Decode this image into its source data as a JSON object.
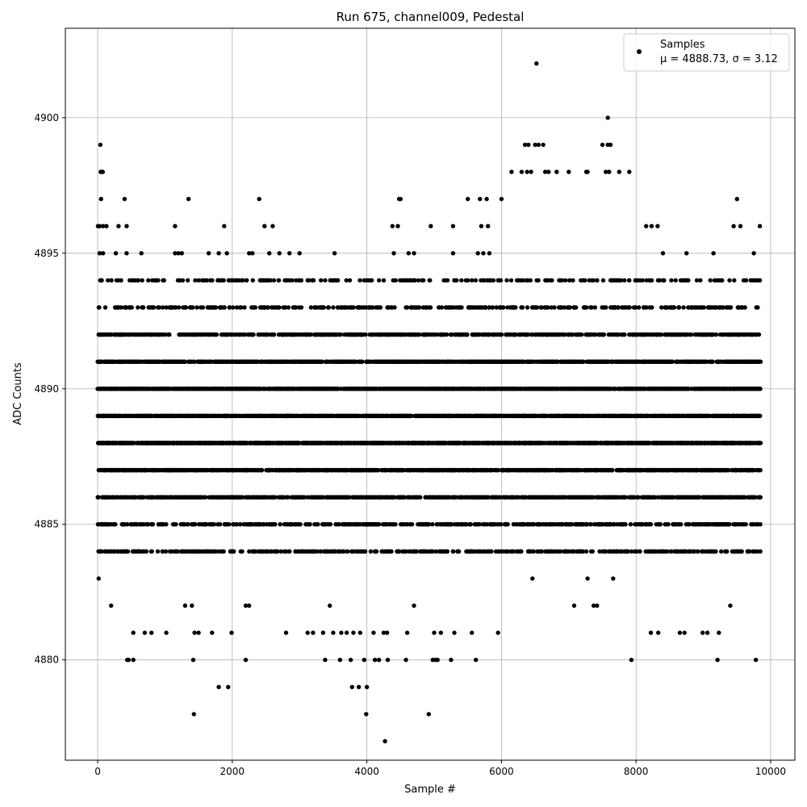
{
  "chart_data": {
    "type": "scatter",
    "title": "Run 675, channel009, Pedestal",
    "xlabel": "Sample #",
    "ylabel": "ADC Counts",
    "xlim": [
      -480,
      10360
    ],
    "ylim": [
      4876.3,
      4903.3
    ],
    "xticks": [
      0,
      2000,
      4000,
      6000,
      8000,
      10000
    ],
    "xtick_labels": [
      "0",
      "2000",
      "4000",
      "6000",
      "8000",
      "10000"
    ],
    "yticks": [
      4880,
      4885,
      4890,
      4895,
      4900
    ],
    "ytick_labels": [
      "4880",
      "4885",
      "4890",
      "4895",
      "4900"
    ],
    "grid": true,
    "legend_position": "top-right",
    "marker_color": "#000000",
    "sample_count": 9900,
    "series": [
      {
        "name": "Samples",
        "stats_label": "μ = 4888.73, σ = 3.12",
        "mean": 4888.73,
        "std": 3.12,
        "dense_band": [
          4884,
          4894
        ],
        "outliers": [
          {
            "x": 40,
            "y": 4899
          },
          {
            "x": 45,
            "y": 4898
          },
          {
            "x": 60,
            "y": 4898
          },
          {
            "x": 75,
            "y": 4898
          },
          {
            "x": 50,
            "y": 4897
          },
          {
            "x": 400,
            "y": 4897
          },
          {
            "x": 1350,
            "y": 4897
          },
          {
            "x": 2400,
            "y": 4897
          },
          {
            "x": 4480,
            "y": 4897
          },
          {
            "x": 4500,
            "y": 4897
          },
          {
            "x": 5500,
            "y": 4897
          },
          {
            "x": 5680,
            "y": 4897
          },
          {
            "x": 5780,
            "y": 4897
          },
          {
            "x": 6000,
            "y": 4897
          },
          {
            "x": 9500,
            "y": 4897
          },
          {
            "x": 6520,
            "y": 4902
          },
          {
            "x": 7580,
            "y": 4900
          },
          {
            "x": 6350,
            "y": 4899
          },
          {
            "x": 6400,
            "y": 4899
          },
          {
            "x": 6500,
            "y": 4899
          },
          {
            "x": 6550,
            "y": 4899
          },
          {
            "x": 6620,
            "y": 4899
          },
          {
            "x": 7500,
            "y": 4899
          },
          {
            "x": 7580,
            "y": 4899
          },
          {
            "x": 7620,
            "y": 4899
          },
          {
            "x": 6150,
            "y": 4898
          },
          {
            "x": 6300,
            "y": 4898
          },
          {
            "x": 6380,
            "y": 4898
          },
          {
            "x": 6440,
            "y": 4898
          },
          {
            "x": 6650,
            "y": 4898
          },
          {
            "x": 6700,
            "y": 4898
          },
          {
            "x": 6820,
            "y": 4898
          },
          {
            "x": 7000,
            "y": 4898
          },
          {
            "x": 7260,
            "y": 4898
          },
          {
            "x": 7280,
            "y": 4898
          },
          {
            "x": 7550,
            "y": 4898
          },
          {
            "x": 7600,
            "y": 4898
          },
          {
            "x": 7750,
            "y": 4898
          },
          {
            "x": 7900,
            "y": 4898
          },
          {
            "x": 5,
            "y": 4896
          },
          {
            "x": 30,
            "y": 4896
          },
          {
            "x": 80,
            "y": 4896
          },
          {
            "x": 130,
            "y": 4896
          },
          {
            "x": 310,
            "y": 4896
          },
          {
            "x": 430,
            "y": 4896
          },
          {
            "x": 1150,
            "y": 4896
          },
          {
            "x": 1880,
            "y": 4896
          },
          {
            "x": 2480,
            "y": 4896
          },
          {
            "x": 2600,
            "y": 4896
          },
          {
            "x": 4380,
            "y": 4896
          },
          {
            "x": 4460,
            "y": 4896
          },
          {
            "x": 4950,
            "y": 4896
          },
          {
            "x": 5280,
            "y": 4896
          },
          {
            "x": 5700,
            "y": 4896
          },
          {
            "x": 5800,
            "y": 4896
          },
          {
            "x": 8150,
            "y": 4896
          },
          {
            "x": 8230,
            "y": 4896
          },
          {
            "x": 8320,
            "y": 4896
          },
          {
            "x": 9450,
            "y": 4896
          },
          {
            "x": 9550,
            "y": 4896
          },
          {
            "x": 9840,
            "y": 4896
          },
          {
            "x": 30,
            "y": 4895
          },
          {
            "x": 80,
            "y": 4895
          },
          {
            "x": 270,
            "y": 4895
          },
          {
            "x": 430,
            "y": 4895
          },
          {
            "x": 650,
            "y": 4895
          },
          {
            "x": 1150,
            "y": 4895
          },
          {
            "x": 1200,
            "y": 4895
          },
          {
            "x": 1250,
            "y": 4895
          },
          {
            "x": 1650,
            "y": 4895
          },
          {
            "x": 1800,
            "y": 4895
          },
          {
            "x": 1920,
            "y": 4895
          },
          {
            "x": 2250,
            "y": 4895
          },
          {
            "x": 2300,
            "y": 4895
          },
          {
            "x": 2550,
            "y": 4895
          },
          {
            "x": 2700,
            "y": 4895
          },
          {
            "x": 2850,
            "y": 4895
          },
          {
            "x": 3000,
            "y": 4895
          },
          {
            "x": 3520,
            "y": 4895
          },
          {
            "x": 4400,
            "y": 4895
          },
          {
            "x": 4620,
            "y": 4895
          },
          {
            "x": 4700,
            "y": 4895
          },
          {
            "x": 5280,
            "y": 4895
          },
          {
            "x": 5650,
            "y": 4895
          },
          {
            "x": 5730,
            "y": 4895
          },
          {
            "x": 5820,
            "y": 4895
          },
          {
            "x": 8400,
            "y": 4895
          },
          {
            "x": 8750,
            "y": 4895
          },
          {
            "x": 9150,
            "y": 4895
          },
          {
            "x": 9750,
            "y": 4895
          },
          {
            "x": 15,
            "y": 4883
          },
          {
            "x": 200,
            "y": 4882
          },
          {
            "x": 1300,
            "y": 4882
          },
          {
            "x": 1400,
            "y": 4882
          },
          {
            "x": 2200,
            "y": 4882
          },
          {
            "x": 2250,
            "y": 4882
          },
          {
            "x": 3450,
            "y": 4882
          },
          {
            "x": 4700,
            "y": 4882
          },
          {
            "x": 7080,
            "y": 4882
          },
          {
            "x": 7370,
            "y": 4882
          },
          {
            "x": 7420,
            "y": 4882
          },
          {
            "x": 9400,
            "y": 4882
          },
          {
            "x": 7280,
            "y": 4883
          },
          {
            "x": 7660,
            "y": 4883
          },
          {
            "x": 6460,
            "y": 4883
          },
          {
            "x": 6740,
            "y": 4884
          },
          {
            "x": 6980,
            "y": 4884
          },
          {
            "x": 7060,
            "y": 4884
          },
          {
            "x": 7680,
            "y": 4884
          },
          {
            "x": 530,
            "y": 4881
          },
          {
            "x": 700,
            "y": 4881
          },
          {
            "x": 800,
            "y": 4881
          },
          {
            "x": 1020,
            "y": 4881
          },
          {
            "x": 1440,
            "y": 4881
          },
          {
            "x": 1500,
            "y": 4881
          },
          {
            "x": 1700,
            "y": 4881
          },
          {
            "x": 1990,
            "y": 4881
          },
          {
            "x": 2800,
            "y": 4881
          },
          {
            "x": 3120,
            "y": 4881
          },
          {
            "x": 3200,
            "y": 4881
          },
          {
            "x": 3350,
            "y": 4881
          },
          {
            "x": 3500,
            "y": 4881
          },
          {
            "x": 3620,
            "y": 4881
          },
          {
            "x": 3700,
            "y": 4881
          },
          {
            "x": 3800,
            "y": 4881
          },
          {
            "x": 3900,
            "y": 4881
          },
          {
            "x": 4100,
            "y": 4881
          },
          {
            "x": 4250,
            "y": 4881
          },
          {
            "x": 4300,
            "y": 4881
          },
          {
            "x": 4600,
            "y": 4881
          },
          {
            "x": 5000,
            "y": 4881
          },
          {
            "x": 5100,
            "y": 4881
          },
          {
            "x": 5300,
            "y": 4881
          },
          {
            "x": 5560,
            "y": 4881
          },
          {
            "x": 5950,
            "y": 4881
          },
          {
            "x": 8220,
            "y": 4881
          },
          {
            "x": 8330,
            "y": 4881
          },
          {
            "x": 8650,
            "y": 4881
          },
          {
            "x": 8720,
            "y": 4881
          },
          {
            "x": 8990,
            "y": 4881
          },
          {
            "x": 9060,
            "y": 4881
          },
          {
            "x": 9230,
            "y": 4881
          },
          {
            "x": 440,
            "y": 4880
          },
          {
            "x": 460,
            "y": 4880
          },
          {
            "x": 530,
            "y": 4880
          },
          {
            "x": 1420,
            "y": 4880
          },
          {
            "x": 2200,
            "y": 4880
          },
          {
            "x": 3380,
            "y": 4880
          },
          {
            "x": 3600,
            "y": 4880
          },
          {
            "x": 3760,
            "y": 4880
          },
          {
            "x": 3960,
            "y": 4880
          },
          {
            "x": 4120,
            "y": 4880
          },
          {
            "x": 4180,
            "y": 4880
          },
          {
            "x": 4310,
            "y": 4880
          },
          {
            "x": 4580,
            "y": 4880
          },
          {
            "x": 4980,
            "y": 4880
          },
          {
            "x": 5020,
            "y": 4880
          },
          {
            "x": 5050,
            "y": 4880
          },
          {
            "x": 5250,
            "y": 4880
          },
          {
            "x": 5620,
            "y": 4880
          },
          {
            "x": 7930,
            "y": 4880
          },
          {
            "x": 9210,
            "y": 4880
          },
          {
            "x": 9780,
            "y": 4880
          },
          {
            "x": 1800,
            "y": 4879
          },
          {
            "x": 1940,
            "y": 4879
          },
          {
            "x": 3780,
            "y": 4879
          },
          {
            "x": 3880,
            "y": 4879
          },
          {
            "x": 4000,
            "y": 4879
          },
          {
            "x": 1430,
            "y": 4878
          },
          {
            "x": 3990,
            "y": 4878
          },
          {
            "x": 4920,
            "y": 4878
          },
          {
            "x": 4270,
            "y": 4877
          }
        ]
      }
    ]
  }
}
